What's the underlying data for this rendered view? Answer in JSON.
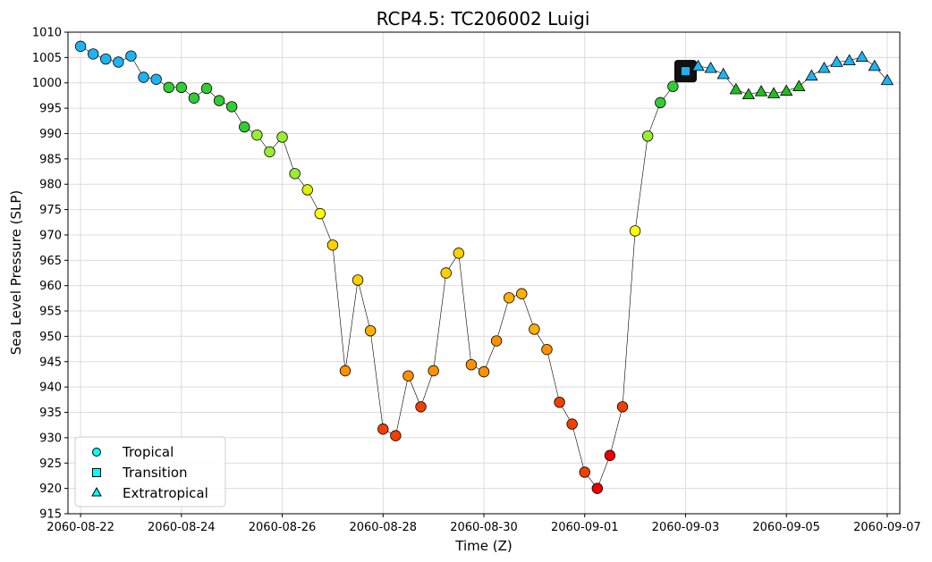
{
  "chart_data": {
    "type": "scatter",
    "title": "RCP4.5: TC206002 Luigi",
    "xlabel": "Time (Z)",
    "ylabel": "Sea Level Pressure (SLP)",
    "ylim": [
      915,
      1010
    ],
    "yticks": [
      915,
      920,
      925,
      930,
      935,
      940,
      945,
      950,
      955,
      960,
      965,
      970,
      975,
      980,
      985,
      990,
      995,
      1000,
      1005,
      1010
    ],
    "xlim": [
      "2060-08-21 18:00",
      "2060-09-07 06:00"
    ],
    "xticks": [
      "2060-08-22",
      "2060-08-24",
      "2060-08-26",
      "2060-08-28",
      "2060-08-30",
      "2060-09-01",
      "2060-09-03",
      "2060-09-05",
      "2060-09-07"
    ],
    "grid": true,
    "legend": {
      "position": "lower-left",
      "entries": [
        {
          "label": "Tropical",
          "marker": "circle",
          "color": "#00ffff"
        },
        {
          "label": "Transition",
          "marker": "square",
          "color": "#00ffff"
        },
        {
          "label": "Extratropical",
          "marker": "triangle",
          "color": "#00ffff"
        }
      ]
    },
    "points": [
      {
        "t": "2060-08-22 00:00",
        "p": 1007.2,
        "phase": "Tropical",
        "color": "#1fb3f0"
      },
      {
        "t": "2060-08-22 06:00",
        "p": 1005.7,
        "phase": "Tropical",
        "color": "#1fb3f0"
      },
      {
        "t": "2060-08-22 12:00",
        "p": 1004.7,
        "phase": "Tropical",
        "color": "#1fb3f0"
      },
      {
        "t": "2060-08-22 18:00",
        "p": 1004.1,
        "phase": "Tropical",
        "color": "#1fb3f0"
      },
      {
        "t": "2060-08-23 00:00",
        "p": 1005.3,
        "phase": "Tropical",
        "color": "#1fb3f0"
      },
      {
        "t": "2060-08-23 06:00",
        "p": 1001.1,
        "phase": "Tropical",
        "color": "#1fb3f0"
      },
      {
        "t": "2060-08-23 12:00",
        "p": 1000.7,
        "phase": "Tropical",
        "color": "#1fb3f0"
      },
      {
        "t": "2060-08-23 18:00",
        "p": 999.1,
        "phase": "Tropical",
        "color": "#33cc33"
      },
      {
        "t": "2060-08-24 00:00",
        "p": 999.1,
        "phase": "Tropical",
        "color": "#33cc33"
      },
      {
        "t": "2060-08-24 06:00",
        "p": 997.0,
        "phase": "Tropical",
        "color": "#33cc33"
      },
      {
        "t": "2060-08-24 12:00",
        "p": 998.9,
        "phase": "Tropical",
        "color": "#33cc33"
      },
      {
        "t": "2060-08-24 18:00",
        "p": 996.5,
        "phase": "Tropical",
        "color": "#33cc33"
      },
      {
        "t": "2060-08-25 00:00",
        "p": 995.3,
        "phase": "Tropical",
        "color": "#33cc33"
      },
      {
        "t": "2060-08-25 06:00",
        "p": 991.3,
        "phase": "Tropical",
        "color": "#33cc33"
      },
      {
        "t": "2060-08-25 12:00",
        "p": 989.7,
        "phase": "Tropical",
        "color": "#99ee33"
      },
      {
        "t": "2060-08-25 18:00",
        "p": 986.4,
        "phase": "Tropical",
        "color": "#99ee33"
      },
      {
        "t": "2060-08-26 00:00",
        "p": 989.3,
        "phase": "Tropical",
        "color": "#99ee33"
      },
      {
        "t": "2060-08-26 06:00",
        "p": 982.1,
        "phase": "Tropical",
        "color": "#99ee33"
      },
      {
        "t": "2060-08-26 12:00",
        "p": 978.9,
        "phase": "Tropical",
        "color": "#ddf000"
      },
      {
        "t": "2060-08-26 18:00",
        "p": 974.2,
        "phase": "Tropical",
        "color": "#ffff00"
      },
      {
        "t": "2060-08-27 00:00",
        "p": 968.0,
        "phase": "Tropical",
        "color": "#ffd000"
      },
      {
        "t": "2060-08-27 06:00",
        "p": 943.2,
        "phase": "Tropical",
        "color": "#ff9000"
      },
      {
        "t": "2060-08-27 12:00",
        "p": 961.1,
        "phase": "Tropical",
        "color": "#ffd000"
      },
      {
        "t": "2060-08-27 18:00",
        "p": 951.1,
        "phase": "Tropical",
        "color": "#ffb000"
      },
      {
        "t": "2060-08-28 00:00",
        "p": 931.7,
        "phase": "Tropical",
        "color": "#f04000"
      },
      {
        "t": "2060-08-28 06:00",
        "p": 930.4,
        "phase": "Tropical",
        "color": "#f04000"
      },
      {
        "t": "2060-08-28 12:00",
        "p": 942.2,
        "phase": "Tropical",
        "color": "#ff9000"
      },
      {
        "t": "2060-08-28 18:00",
        "p": 936.1,
        "phase": "Tropical",
        "color": "#f04000"
      },
      {
        "t": "2060-08-29 00:00",
        "p": 943.2,
        "phase": "Tropical",
        "color": "#ff9000"
      },
      {
        "t": "2060-08-29 06:00",
        "p": 962.5,
        "phase": "Tropical",
        "color": "#ffd000"
      },
      {
        "t": "2060-08-29 12:00",
        "p": 966.4,
        "phase": "Tropical",
        "color": "#ffd000"
      },
      {
        "t": "2060-08-29 18:00",
        "p": 944.4,
        "phase": "Tropical",
        "color": "#ff9000"
      },
      {
        "t": "2060-08-30 00:00",
        "p": 943.0,
        "phase": "Tropical",
        "color": "#ff9000"
      },
      {
        "t": "2060-08-30 06:00",
        "p": 949.1,
        "phase": "Tropical",
        "color": "#ff9000"
      },
      {
        "t": "2060-08-30 12:00",
        "p": 957.6,
        "phase": "Tropical",
        "color": "#ffb000"
      },
      {
        "t": "2060-08-30 18:00",
        "p": 958.4,
        "phase": "Tropical",
        "color": "#ffb000"
      },
      {
        "t": "2060-08-31 00:00",
        "p": 951.4,
        "phase": "Tropical",
        "color": "#ffb000"
      },
      {
        "t": "2060-08-31 06:00",
        "p": 947.4,
        "phase": "Tropical",
        "color": "#ff9000"
      },
      {
        "t": "2060-08-31 12:00",
        "p": 937.0,
        "phase": "Tropical",
        "color": "#f04000"
      },
      {
        "t": "2060-08-31 18:00",
        "p": 932.7,
        "phase": "Tropical",
        "color": "#f04000"
      },
      {
        "t": "2060-09-01 00:00",
        "p": 923.2,
        "phase": "Tropical",
        "color": "#f04000"
      },
      {
        "t": "2060-09-01 06:00",
        "p": 920.0,
        "phase": "Tropical",
        "color": "#ee0000"
      },
      {
        "t": "2060-09-01 12:00",
        "p": 926.5,
        "phase": "Tropical",
        "color": "#ee0000"
      },
      {
        "t": "2060-09-01 18:00",
        "p": 936.1,
        "phase": "Tropical",
        "color": "#f04000"
      },
      {
        "t": "2060-09-02 00:00",
        "p": 970.8,
        "phase": "Tropical",
        "color": "#ffff00"
      },
      {
        "t": "2060-09-02 06:00",
        "p": 989.5,
        "phase": "Tropical",
        "color": "#99ee33"
      },
      {
        "t": "2060-09-02 12:00",
        "p": 996.1,
        "phase": "Tropical",
        "color": "#33cc33"
      },
      {
        "t": "2060-09-02 18:00",
        "p": 999.3,
        "phase": "Tropical",
        "color": "#33cc33"
      },
      {
        "t": "2060-09-03 00:00",
        "p": 1002.3,
        "phase": "Transition",
        "color": "#1fb3f0"
      },
      {
        "t": "2060-09-03 06:00",
        "p": 1003.3,
        "phase": "Extratropical",
        "color": "#1fb3f0"
      },
      {
        "t": "2060-09-03 12:00",
        "p": 1002.9,
        "phase": "Extratropical",
        "color": "#1fb3f0"
      },
      {
        "t": "2060-09-03 18:00",
        "p": 1001.7,
        "phase": "Extratropical",
        "color": "#1fb3f0"
      },
      {
        "t": "2060-09-04 00:00",
        "p": 998.7,
        "phase": "Extratropical",
        "color": "#22bb22"
      },
      {
        "t": "2060-09-04 06:00",
        "p": 997.7,
        "phase": "Extratropical",
        "color": "#22bb22"
      },
      {
        "t": "2060-09-04 12:00",
        "p": 998.3,
        "phase": "Extratropical",
        "color": "#22bb22"
      },
      {
        "t": "2060-09-04 18:00",
        "p": 997.9,
        "phase": "Extratropical",
        "color": "#22bb22"
      },
      {
        "t": "2060-09-05 00:00",
        "p": 998.4,
        "phase": "Extratropical",
        "color": "#22bb22"
      },
      {
        "t": "2060-09-05 06:00",
        "p": 999.3,
        "phase": "Extratropical",
        "color": "#22bb22"
      },
      {
        "t": "2060-09-05 12:00",
        "p": 1001.4,
        "phase": "Extratropical",
        "color": "#1fb3f0"
      },
      {
        "t": "2060-09-05 18:00",
        "p": 1002.9,
        "phase": "Extratropical",
        "color": "#1fb3f0"
      },
      {
        "t": "2060-09-06 00:00",
        "p": 1004.1,
        "phase": "Extratropical",
        "color": "#1fb3f0"
      },
      {
        "t": "2060-09-06 06:00",
        "p": 1004.4,
        "phase": "Extratropical",
        "color": "#1fb3f0"
      },
      {
        "t": "2060-09-06 12:00",
        "p": 1005.1,
        "phase": "Extratropical",
        "color": "#1fb3f0"
      },
      {
        "t": "2060-09-06 18:00",
        "p": 1003.3,
        "phase": "Extratropical",
        "color": "#1fb3f0"
      },
      {
        "t": "2060-09-07 00:00",
        "p": 1000.5,
        "phase": "Extratropical",
        "color": "#1fb3f0"
      }
    ]
  }
}
